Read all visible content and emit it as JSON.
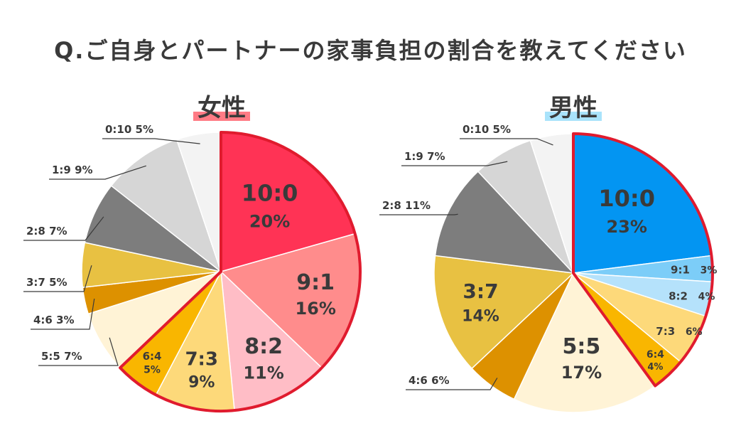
{
  "title": "Q.ご自身とパートナーの家事負担の割合を教えてください",
  "chart_data": [
    {
      "type": "pie",
      "title": "女性",
      "title_color": "#ff7b85",
      "highlight_color": "#e01b2e",
      "slices": [
        {
          "label": "10:0",
          "value": 20,
          "display": "20%",
          "color": "#ff3355",
          "inside": true,
          "highlight": true
        },
        {
          "label": "9:1",
          "value": 16,
          "display": "16%",
          "color": "#ff8c8c",
          "inside": true,
          "highlight": true
        },
        {
          "label": "8:2",
          "value": 11,
          "display": "11%",
          "color": "#ffbdc6",
          "inside": true,
          "highlight": true
        },
        {
          "label": "7:3",
          "value": 9,
          "display": "9%",
          "color": "#fdd97a",
          "inside": true,
          "highlight": true
        },
        {
          "label": "6:4",
          "value": 5,
          "display": "5%",
          "color": "#f9b600",
          "inside": true,
          "highlight": true
        },
        {
          "label": "5:5",
          "value": 7,
          "display": "7%",
          "color": "#fff3d6",
          "inside": false
        },
        {
          "label": "4:6",
          "value": 3,
          "display": "3%",
          "color": "#dd9100",
          "inside": false
        },
        {
          "label": "3:7",
          "value": 5,
          "display": "5%",
          "color": "#e8c142",
          "inside": false
        },
        {
          "label": "2:8",
          "value": 7,
          "display": "7%",
          "color": "#7d7d7d",
          "inside": false
        },
        {
          "label": "1:9",
          "value": 9,
          "display": "9%",
          "color": "#d6d6d6",
          "inside": false
        },
        {
          "label": "0:10",
          "value": 5,
          "display": "5%",
          "color": "#f3f3f3",
          "inside": false
        }
      ]
    },
    {
      "type": "pie",
      "title": "男性",
      "title_color": "#a9e3fb",
      "highlight_color": "#e01b2e",
      "slices": [
        {
          "label": "10:0",
          "value": 23,
          "display": "23%",
          "color": "#0395f2",
          "inside": true,
          "highlight": true
        },
        {
          "label": "9:1",
          "value": 3,
          "display": "3%",
          "color": "#7ccdf8",
          "inside": true,
          "highlight": true
        },
        {
          "label": "8:2",
          "value": 4,
          "display": "4%",
          "color": "#b5e2fb",
          "inside": true,
          "highlight": true
        },
        {
          "label": "7:3",
          "value": 6,
          "display": "6%",
          "color": "#fdd97a",
          "inside": true,
          "highlight": true
        },
        {
          "label": "6:4",
          "value": 4,
          "display": "4%",
          "color": "#f9b600",
          "inside": true,
          "highlight": true
        },
        {
          "label": "5:5",
          "value": 17,
          "display": "17%",
          "color": "#fff3d6",
          "inside": true
        },
        {
          "label": "4:6",
          "value": 6,
          "display": "6%",
          "color": "#dd9100",
          "inside": false
        },
        {
          "label": "3:7",
          "value": 14,
          "display": "14%",
          "color": "#e8c142",
          "inside": true
        },
        {
          "label": "2:8",
          "value": 11,
          "display": "11%",
          "color": "#7d7d7d",
          "inside": false
        },
        {
          "label": "1:9",
          "value": 7,
          "display": "7%",
          "color": "#d6d6d6",
          "inside": false
        },
        {
          "label": "0:10",
          "value": 5,
          "display": "5%",
          "color": "#f3f3f3",
          "inside": false
        }
      ]
    }
  ]
}
